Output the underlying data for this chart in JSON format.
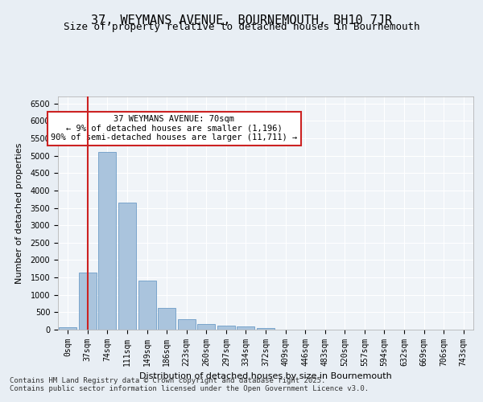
{
  "title_line1": "37, WEYMANS AVENUE, BOURNEMOUTH, BH10 7JR",
  "title_line2": "Size of property relative to detached houses in Bournemouth",
  "xlabel": "Distribution of detached houses by size in Bournemouth",
  "ylabel": "Number of detached properties",
  "categories": [
    "0sqm",
    "37sqm",
    "74sqm",
    "111sqm",
    "149sqm",
    "186sqm",
    "223sqm",
    "260sqm",
    "297sqm",
    "334sqm",
    "372sqm",
    "409sqm",
    "446sqm",
    "483sqm",
    "520sqm",
    "557sqm",
    "594sqm",
    "632sqm",
    "669sqm",
    "706sqm",
    "743sqm"
  ],
  "bar_values": [
    75,
    1650,
    5100,
    3650,
    1420,
    620,
    310,
    165,
    115,
    85,
    50,
    0,
    0,
    0,
    0,
    0,
    0,
    0,
    0,
    0,
    0
  ],
  "bar_color": "#aac4dd",
  "bar_edge_color": "#5a8fc0",
  "vline_x": 1,
  "vline_color": "#cc2222",
  "annotation_title": "37 WEYMANS AVENUE: 70sqm",
  "annotation_line1": "← 9% of detached houses are smaller (1,196)",
  "annotation_line2": "90% of semi-detached houses are larger (11,711) →",
  "annotation_box_color": "#cc2222",
  "ylim": [
    0,
    6700
  ],
  "yticks": [
    0,
    500,
    1000,
    1500,
    2000,
    2500,
    3000,
    3500,
    4000,
    4500,
    5000,
    5500,
    6000,
    6500
  ],
  "footnote1": "Contains HM Land Registry data © Crown copyright and database right 2025.",
  "footnote2": "Contains public sector information licensed under the Open Government Licence v3.0.",
  "bg_color": "#e8eef4",
  "plot_bg_color": "#f0f4f8",
  "grid_color": "#ffffff",
  "title_fontsize": 11,
  "subtitle_fontsize": 9,
  "axis_label_fontsize": 8,
  "tick_fontsize": 7,
  "annotation_fontsize": 7.5,
  "footnote_fontsize": 6.5
}
